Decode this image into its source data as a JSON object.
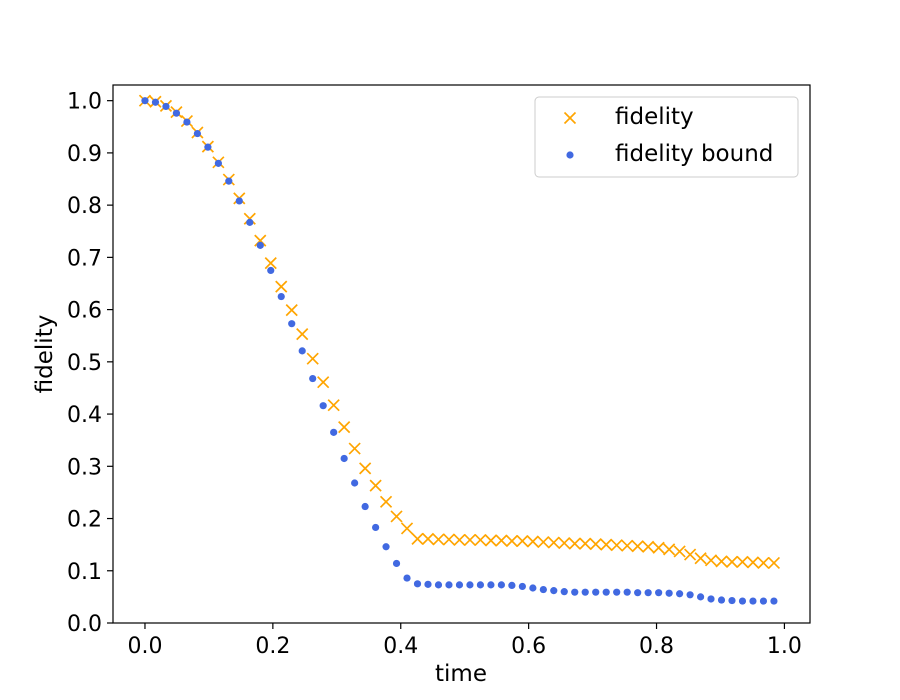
{
  "colors": {
    "fidelity": "#FFA500",
    "fidelity_bound": "#4169E1"
  },
  "chart_data": {
    "type": "scatter",
    "title": "",
    "xlabel": "time",
    "ylabel": "fidelity",
    "xlim": [
      -0.05,
      1.04
    ],
    "ylim": [
      0.0,
      1.03
    ],
    "xticks": [
      0.0,
      0.2,
      0.4,
      0.6,
      0.8,
      1.0
    ],
    "xtick_labels": [
      "0.0",
      "0.2",
      "0.4",
      "0.6",
      "0.8",
      "1.0"
    ],
    "yticks": [
      0.0,
      0.1,
      0.2,
      0.3,
      0.4,
      0.5,
      0.6,
      0.7,
      0.8,
      0.9,
      1.0
    ],
    "ytick_labels": [
      "0.0",
      "0.1",
      "0.2",
      "0.3",
      "0.4",
      "0.5",
      "0.6",
      "0.7",
      "0.8",
      "0.9",
      "1.0"
    ],
    "grid": false,
    "legend_position": "top-right",
    "x": [
      0.0,
      0.0164,
      0.0328,
      0.0492,
      0.0656,
      0.082,
      0.0984,
      0.1148,
      0.1311,
      0.1475,
      0.1639,
      0.1803,
      0.1967,
      0.2131,
      0.2295,
      0.2459,
      0.2623,
      0.2787,
      0.2951,
      0.3115,
      0.3279,
      0.3443,
      0.3607,
      0.377,
      0.3934,
      0.4098,
      0.4262,
      0.4426,
      0.459,
      0.4754,
      0.4918,
      0.5082,
      0.5246,
      0.541,
      0.5574,
      0.5738,
      0.5902,
      0.6066,
      0.623,
      0.6393,
      0.6557,
      0.6721,
      0.6885,
      0.7049,
      0.7213,
      0.7377,
      0.7541,
      0.7705,
      0.7869,
      0.8033,
      0.8197,
      0.8361,
      0.8525,
      0.8689,
      0.8852,
      0.9016,
      0.918,
      0.9344,
      0.9508,
      0.9672,
      0.9836
    ],
    "series": [
      {
        "name": "fidelity",
        "marker": "x",
        "values": [
          1.0,
          0.998,
          0.99,
          0.978,
          0.961,
          0.939,
          0.912,
          0.882,
          0.849,
          0.813,
          0.774,
          0.732,
          0.689,
          0.644,
          0.599,
          0.553,
          0.506,
          0.461,
          0.417,
          0.375,
          0.334,
          0.296,
          0.263,
          0.232,
          0.204,
          0.181,
          0.161,
          0.161,
          0.16,
          0.16,
          0.159,
          0.159,
          0.159,
          0.158,
          0.158,
          0.157,
          0.157,
          0.156,
          0.155,
          0.154,
          0.153,
          0.152,
          0.152,
          0.151,
          0.15,
          0.149,
          0.148,
          0.147,
          0.146,
          0.144,
          0.141,
          0.137,
          0.131,
          0.124,
          0.12,
          0.118,
          0.117,
          0.117,
          0.116,
          0.115,
          0.115
        ]
      },
      {
        "name": "fidelity bound",
        "marker": "o",
        "values": [
          1.0,
          0.997,
          0.989,
          0.976,
          0.959,
          0.937,
          0.911,
          0.88,
          0.846,
          0.808,
          0.767,
          0.723,
          0.675,
          0.625,
          0.573,
          0.521,
          0.468,
          0.416,
          0.365,
          0.315,
          0.268,
          0.223,
          0.183,
          0.146,
          0.114,
          0.086,
          0.075,
          0.074,
          0.073,
          0.073,
          0.073,
          0.073,
          0.073,
          0.073,
          0.073,
          0.072,
          0.07,
          0.067,
          0.064,
          0.062,
          0.06,
          0.059,
          0.059,
          0.059,
          0.059,
          0.059,
          0.059,
          0.058,
          0.058,
          0.058,
          0.057,
          0.056,
          0.054,
          0.05,
          0.046,
          0.044,
          0.043,
          0.042,
          0.042,
          0.042,
          0.042
        ]
      }
    ]
  }
}
